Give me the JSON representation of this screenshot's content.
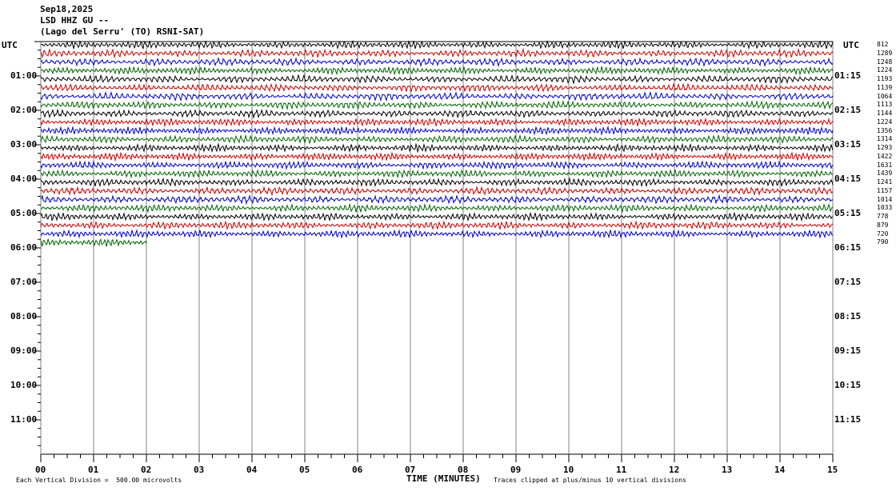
{
  "header": {
    "date": "Sep18,2025",
    "station": "LSD HHZ GU --",
    "location": "(Lago del Serru' (TO) RSNI-SAT)"
  },
  "axes": {
    "left_unit": "UTC",
    "right_unit": "UTC",
    "xlabel": "TIME (MINUTES)",
    "note_left": "Each Vertical Division =  500.00 microvolts",
    "note_right": "Traces clipped at plus/minus 10 vertical divisions"
  },
  "colors": {
    "trace": [
      "#000000",
      "#cc0000",
      "#0000cc",
      "#006600"
    ],
    "grid": "#808080"
  },
  "chart_data": {
    "type": "line",
    "title": "LSD HHZ GU --",
    "xlabel": "TIME (MINUTES)",
    "xlim": [
      0,
      15
    ],
    "x_ticks": [
      "00",
      "01",
      "02",
      "03",
      "04",
      "05",
      "06",
      "07",
      "08",
      "09",
      "10",
      "11",
      "12",
      "13",
      "14",
      "15"
    ],
    "left_hour_labels": [
      "01:00",
      "02:00",
      "03:00",
      "04:00",
      "05:00",
      "06:00",
      "07:00",
      "08:00",
      "09:00",
      "10:00",
      "11:00"
    ],
    "right_hour_labels": [
      "01:15",
      "02:15",
      "03:15",
      "04:15",
      "05:15",
      "06:15",
      "07:15",
      "08:15",
      "09:15",
      "10:15",
      "11:15"
    ],
    "trace_values": [
      812,
      1289,
      1248,
      1224,
      1193,
      1139,
      1064,
      1113,
      1144,
      1224,
      1356,
      1314,
      1293,
      1422,
      1631,
      1439,
      1241,
      1157,
      1014,
      1033,
      778,
      879,
      720,
      790
    ],
    "last_trace_minutes": 2.0,
    "total_rows": 48
  }
}
